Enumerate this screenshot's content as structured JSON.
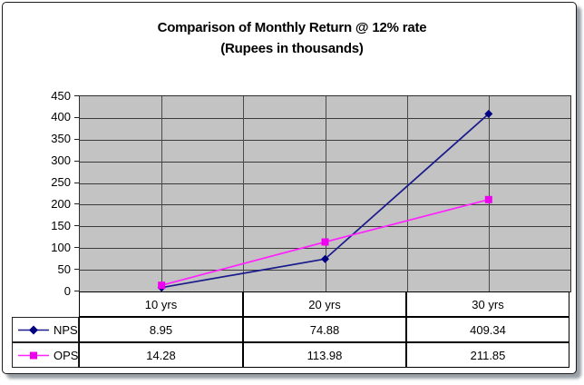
{
  "title": {
    "line1": "Comparison of Monthly Return @ 12% rate",
    "line2": "(Rupees in thousands)"
  },
  "chart_data": {
    "type": "line",
    "categories": [
      "10 yrs",
      "20 yrs",
      "30 yrs"
    ],
    "series": [
      {
        "name": "NPS",
        "values": [
          8.95,
          74.88,
          409.34
        ],
        "color": "#000080",
        "line_color": "#1a1a8c",
        "marker": "diamond"
      },
      {
        "name": "OPS",
        "values": [
          14.28,
          113.98,
          211.85
        ],
        "color": "#ee00ee",
        "line_color": "#ff22ff",
        "marker": "square"
      }
    ],
    "title": "Comparison of Monthly Return @ 12% rate (Rupees in thousands)",
    "xlabel": "",
    "ylabel": "",
    "ylim": [
      0,
      450
    ],
    "ytick_step": 50,
    "grid": true,
    "plot_bg": "#c3c3c3",
    "legend_position": "data-table-left"
  },
  "colors": {
    "gridline_h": "#3a3a3a",
    "gridline_v": "#4a4a4a",
    "frame_border": "#1c1c1c",
    "frame_shadow": "#98a0a6",
    "table_border": "#000000"
  }
}
